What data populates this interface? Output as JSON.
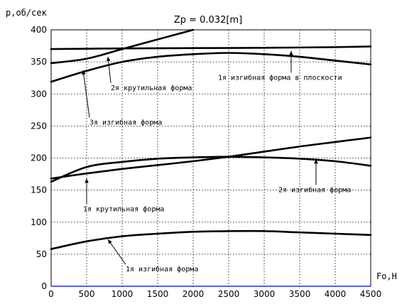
{
  "chart_data": {
    "type": "line",
    "title": "Zp = 0.032[m]",
    "ylabel": "p,об/сек",
    "xlabel": "Fo,Н",
    "xlim": [
      0,
      4500
    ],
    "ylim": [
      0,
      400
    ],
    "x_ticks": [
      0,
      500,
      1000,
      1500,
      2000,
      2500,
      3000,
      3500,
      4000,
      4500
    ],
    "y_ticks": [
      0,
      50,
      100,
      150,
      200,
      250,
      300,
      350,
      400
    ],
    "grid": true,
    "line_color": "#000000",
    "x_axis_color": "#0000cc",
    "series": [
      {
        "points": [
          [
            0,
            370
          ],
          [
            1000,
            371
          ],
          [
            2000,
            371.5
          ],
          [
            3000,
            372
          ],
          [
            4000,
            373
          ],
          [
            4500,
            374
          ]
        ]
      },
      {
        "points": [
          [
            0,
            348
          ],
          [
            500,
            355
          ],
          [
            1000,
            370
          ],
          [
            1500,
            385
          ],
          [
            2000,
            400
          ]
        ]
      },
      {
        "points": [
          [
            0,
            319
          ],
          [
            500,
            336
          ],
          [
            1000,
            350
          ],
          [
            1500,
            358
          ],
          [
            2000,
            362
          ],
          [
            2500,
            364
          ],
          [
            3000,
            362
          ],
          [
            3500,
            358
          ],
          [
            4000,
            352
          ],
          [
            4500,
            346
          ]
        ]
      },
      {
        "points": [
          [
            0,
            163
          ],
          [
            500,
            186
          ],
          [
            1000,
            194
          ],
          [
            1500,
            199
          ],
          [
            2000,
            201
          ],
          [
            2500,
            202
          ],
          [
            3000,
            201
          ],
          [
            3500,
            199
          ],
          [
            4000,
            195
          ],
          [
            4500,
            188
          ]
        ]
      },
      {
        "points": [
          [
            0,
            168
          ],
          [
            500,
            176
          ],
          [
            1000,
            183
          ],
          [
            1500,
            189
          ],
          [
            2000,
            195
          ],
          [
            2500,
            202
          ],
          [
            3000,
            210
          ],
          [
            3500,
            218
          ],
          [
            4000,
            225
          ],
          [
            4500,
            232
          ]
        ]
      },
      {
        "points": [
          [
            0,
            58
          ],
          [
            500,
            70
          ],
          [
            1000,
            78
          ],
          [
            1500,
            82
          ],
          [
            2000,
            85
          ],
          [
            2500,
            86
          ],
          [
            3000,
            86
          ],
          [
            3500,
            84
          ],
          [
            4000,
            82
          ],
          [
            4500,
            80
          ]
        ]
      }
    ],
    "annotations": [
      {
        "text": "2я крутильная форма",
        "x": 840,
        "y": 306,
        "pointer_to": [
          800,
          358
        ]
      },
      {
        "text": "3я изгибная форма",
        "x": 540,
        "y": 252,
        "pointer_to": [
          450,
          337
        ]
      },
      {
        "text": "1я изгибная форма в плоскости",
        "x": 2350,
        "y": 322,
        "pointer_to": [
          3380,
          367
        ]
      },
      {
        "text": "2я изгибная форма",
        "x": 3200,
        "y": 147,
        "pointer_to": [
          3730,
          198
        ]
      },
      {
        "text": "1я крутильная форма",
        "x": 450,
        "y": 117,
        "pointer_to": [
          500,
          168
        ]
      },
      {
        "text": "1я изгибная форма",
        "x": 1050,
        "y": 23,
        "pointer_to": [
          800,
          73
        ]
      }
    ]
  }
}
